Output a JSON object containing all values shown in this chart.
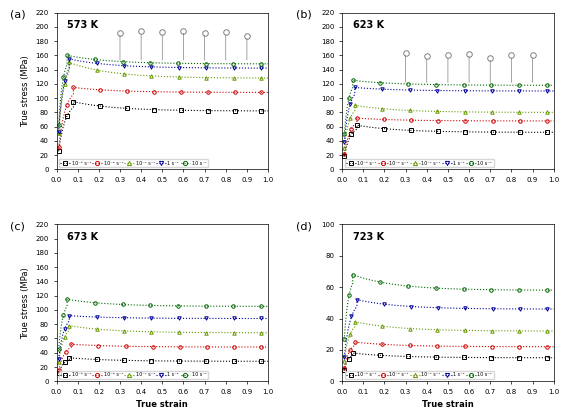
{
  "panels": [
    {
      "label": "a",
      "temp": "573 K",
      "ylim": [
        0,
        220
      ],
      "yticks": [
        0,
        20,
        40,
        60,
        80,
        100,
        120,
        140,
        160,
        180,
        200,
        220
      ],
      "series": [
        {
          "strain_rate": "10⁻³ s⁻¹",
          "color": "#000000",
          "marker": "s",
          "peak_stress": 95,
          "steady_stress": 82,
          "peak_strain": 0.08
        },
        {
          "strain_rate": "10⁻² s⁻¹",
          "color": "#cc0000",
          "marker": "o",
          "peak_stress": 115,
          "steady_stress": 108,
          "peak_strain": 0.08
        },
        {
          "strain_rate": "10⁻¹ s⁻¹",
          "color": "#669900",
          "marker": "^",
          "peak_stress": 150,
          "steady_stress": 128,
          "peak_strain": 0.06
        },
        {
          "strain_rate": "1 s⁻¹",
          "color": "#000099",
          "marker": "v",
          "peak_stress": 155,
          "steady_stress": 142,
          "peak_strain": 0.06
        },
        {
          "strain_rate": "10 s⁻¹",
          "color": "#006600",
          "marker": "o",
          "peak_stress": 160,
          "steady_stress": 148,
          "peak_strain": 0.05,
          "has_spike": true
        }
      ]
    },
    {
      "label": "b",
      "temp": "623 K",
      "ylim": [
        0,
        220
      ],
      "yticks": [
        0,
        20,
        40,
        60,
        80,
        100,
        120,
        140,
        160,
        180,
        200,
        220
      ],
      "series": [
        {
          "strain_rate": "10⁻³ s⁻¹",
          "color": "#000000",
          "marker": "s",
          "peak_stress": 62,
          "steady_stress": 52,
          "peak_strain": 0.07
        },
        {
          "strain_rate": "10⁻² s⁻¹",
          "color": "#cc0000",
          "marker": "o",
          "peak_stress": 72,
          "steady_stress": 68,
          "peak_strain": 0.07
        },
        {
          "strain_rate": "10⁻¹ s⁻¹",
          "color": "#669900",
          "marker": "^",
          "peak_stress": 90,
          "steady_stress": 80,
          "peak_strain": 0.06
        },
        {
          "strain_rate": "1 s⁻¹",
          "color": "#000099",
          "marker": "v",
          "peak_stress": 115,
          "steady_stress": 110,
          "peak_strain": 0.06
        },
        {
          "strain_rate": "10 s⁻¹",
          "color": "#006600",
          "marker": "o",
          "peak_stress": 125,
          "steady_stress": 118,
          "peak_strain": 0.05,
          "has_spike": true
        }
      ]
    },
    {
      "label": "c",
      "temp": "673 K",
      "ylim": [
        0,
        220
      ],
      "yticks": [
        0,
        20,
        40,
        60,
        80,
        100,
        120,
        140,
        160,
        180,
        200,
        220
      ],
      "series": [
        {
          "strain_rate": "10⁻³ s⁻¹",
          "color": "#000000",
          "marker": "s",
          "peak_stress": 33,
          "steady_stress": 28,
          "peak_strain": 0.06
        },
        {
          "strain_rate": "10⁻² s⁻¹",
          "color": "#cc0000",
          "marker": "o",
          "peak_stress": 52,
          "steady_stress": 48,
          "peak_strain": 0.07
        },
        {
          "strain_rate": "10⁻¹ s⁻¹",
          "color": "#669900",
          "marker": "^",
          "peak_stress": 78,
          "steady_stress": 68,
          "peak_strain": 0.06
        },
        {
          "strain_rate": "1 s⁻¹",
          "color": "#000099",
          "marker": "v",
          "peak_stress": 92,
          "steady_stress": 88,
          "peak_strain": 0.06
        },
        {
          "strain_rate": "10 s⁻¹",
          "color": "#006600",
          "marker": "o",
          "peak_stress": 115,
          "steady_stress": 105,
          "peak_strain": 0.05,
          "has_spike": false
        }
      ]
    },
    {
      "label": "d",
      "temp": "723 K",
      "ylim": [
        0,
        100
      ],
      "yticks": [
        0,
        20,
        40,
        60,
        80,
        100
      ],
      "series": [
        {
          "strain_rate": "10⁻³ s⁻¹",
          "color": "#000000",
          "marker": "s",
          "peak_stress": 18,
          "steady_stress": 15,
          "peak_strain": 0.05
        },
        {
          "strain_rate": "10⁻² s⁻¹",
          "color": "#cc0000",
          "marker": "o",
          "peak_stress": 25,
          "steady_stress": 22,
          "peak_strain": 0.06
        },
        {
          "strain_rate": "10⁻¹ s⁻¹",
          "color": "#669900",
          "marker": "^",
          "peak_stress": 38,
          "steady_stress": 32,
          "peak_strain": 0.06
        },
        {
          "strain_rate": "1 s⁻¹",
          "color": "#000099",
          "marker": "v",
          "peak_stress": 52,
          "steady_stress": 46,
          "peak_strain": 0.07
        },
        {
          "strain_rate": "10 s⁻¹",
          "color": "#006600",
          "marker": "o",
          "peak_stress": 68,
          "steady_stress": 58,
          "peak_strain": 0.05,
          "has_spike": true
        }
      ]
    }
  ],
  "xlabel": "True strain",
  "ylabel": "True stress (MPa)",
  "xlim": [
    0.0,
    1.0
  ],
  "xticks": [
    0.0,
    0.1,
    0.2,
    0.3,
    0.4,
    0.5,
    0.6,
    0.7,
    0.8,
    0.9,
    1.0
  ],
  "legend_labels": [
    "10⁻³ s⁻¹",
    "10⁻² s⁻¹",
    "10⁻¹ s⁻¹",
    "1 s⁻¹",
    "10 s⁻¹"
  ],
  "legend_colors": [
    "#000000",
    "#cc0000",
    "#669900",
    "#000099",
    "#006600"
  ],
  "legend_markers": [
    "s",
    "o",
    "^",
    "v",
    "o"
  ],
  "bg_color": "#f0f0f0"
}
